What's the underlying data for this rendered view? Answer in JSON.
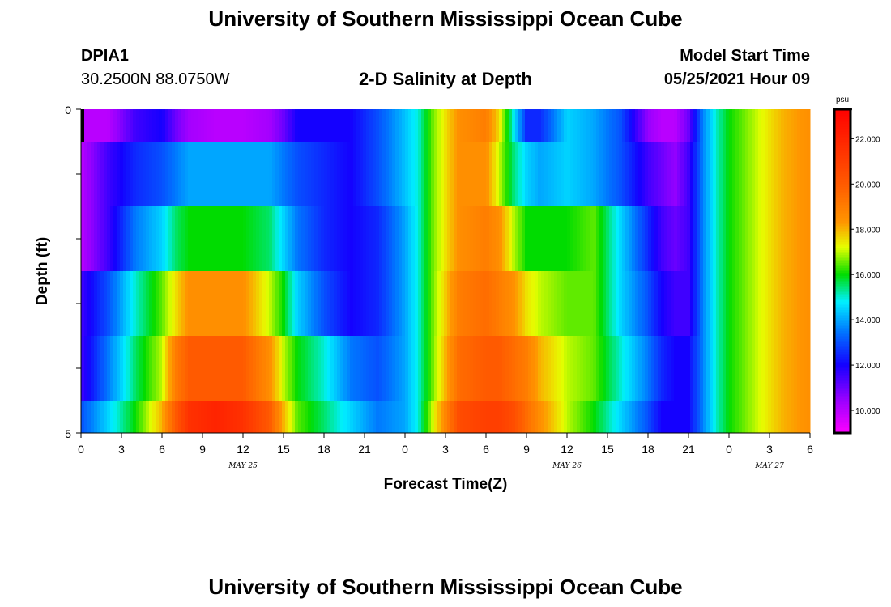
{
  "header": {
    "title_top": "University of Southern Mississippi Ocean Cube",
    "title_bottom": "University of Southern Mississippi Ocean Cube",
    "station_id": "DPIA1",
    "station_coords": "30.2500N  88.0750W",
    "model_start_label": "Model Start Time",
    "model_start_value": "05/25/2021 Hour 09"
  },
  "chart_data": {
    "type": "heatmap",
    "title": "2-D Salinity at Depth",
    "xlabel": "Forecast Time(Z)",
    "ylabel": "Depth (ft)",
    "y_ticks": [
      "0",
      "5"
    ],
    "y_range": [
      0,
      5
    ],
    "x_tick_labels": [
      "0",
      "3",
      "6",
      "9",
      "12",
      "15",
      "18",
      "21",
      "0",
      "3",
      "6",
      "9",
      "12",
      "15",
      "18",
      "21",
      "0",
      "3",
      "6"
    ],
    "date_labels": [
      {
        "text": "MAY 25",
        "at_tick": 4
      },
      {
        "text": "MAY 26",
        "at_tick": 12
      },
      {
        "text": "MAY 27",
        "at_tick": 17
      }
    ],
    "colorbar": {
      "unit": "psu",
      "ticks": [
        "22.000",
        "20.000",
        "18.000",
        "16.000",
        "14.000",
        "12.000",
        "10.000"
      ],
      "tick_values": [
        22,
        20,
        18,
        16,
        14,
        12,
        10
      ],
      "range": [
        9,
        23.3
      ]
    },
    "time_hours": [
      0,
      2,
      4,
      6,
      7,
      8,
      10,
      12,
      14,
      15,
      16,
      18,
      20,
      22,
      24,
      25,
      26,
      28,
      30,
      31,
      32,
      33,
      34,
      36,
      38,
      40,
      42,
      43,
      44,
      45,
      46,
      47,
      48,
      49,
      50,
      51,
      52,
      54
    ],
    "depth_layers": [
      "layer-1",
      "layer-2",
      "layer-3",
      "layer-4",
      "layer-5",
      "layer-6"
    ],
    "salinity_psu": [
      [
        10.0,
        10.0,
        11.5,
        12.0,
        11.0,
        10.3,
        10.0,
        10.0,
        10.3,
        11.0,
        12.0,
        12.0,
        12.0,
        13.0,
        14.3,
        15.0,
        16.5,
        18.5,
        19.0,
        17.5,
        15.0,
        12.5,
        12.5,
        14.5,
        14.0,
        13.0,
        10.5,
        10.0,
        10.0,
        11.0,
        13.5,
        15.0,
        16.0,
        16.5,
        17.0,
        17.5,
        18.0,
        18.5
      ],
      [
        10.0,
        11.5,
        12.5,
        13.0,
        13.5,
        14.0,
        14.0,
        14.0,
        14.0,
        13.5,
        13.0,
        12.5,
        12.0,
        13.0,
        14.3,
        15.0,
        16.5,
        18.5,
        18.5,
        17.0,
        15.5,
        14.5,
        14.0,
        14.5,
        14.0,
        13.0,
        11.5,
        11.0,
        10.5,
        11.5,
        13.5,
        15.0,
        16.0,
        16.5,
        17.0,
        17.5,
        18.0,
        18.5
      ],
      [
        10.0,
        11.5,
        13.5,
        14.5,
        15.5,
        16.0,
        16.0,
        16.0,
        15.5,
        14.5,
        13.5,
        12.5,
        12.0,
        12.5,
        14.0,
        15.0,
        16.5,
        18.5,
        19.0,
        18.5,
        17.0,
        16.0,
        16.0,
        16.0,
        16.5,
        14.5,
        12.5,
        11.5,
        11.0,
        11.5,
        13.5,
        15.0,
        16.0,
        16.5,
        17.0,
        17.5,
        18.0,
        18.5
      ],
      [
        11.5,
        13.0,
        15.0,
        16.5,
        17.5,
        18.5,
        18.5,
        18.5,
        17.0,
        16.0,
        14.5,
        13.0,
        12.0,
        12.5,
        14.0,
        15.0,
        16.5,
        19.0,
        19.5,
        19.0,
        18.5,
        17.5,
        17.0,
        16.5,
        16.5,
        14.5,
        13.0,
        12.0,
        11.5,
        11.5,
        13.5,
        15.0,
        16.0,
        16.5,
        17.0,
        17.5,
        18.0,
        18.5
      ],
      [
        11.5,
        13.5,
        15.5,
        17.0,
        19.0,
        20.0,
        20.0,
        20.0,
        18.5,
        17.0,
        16.0,
        15.0,
        13.5,
        13.0,
        14.0,
        15.0,
        16.5,
        19.5,
        20.0,
        20.0,
        19.5,
        19.0,
        18.0,
        17.0,
        16.5,
        15.0,
        13.5,
        12.5,
        12.0,
        12.0,
        13.5,
        15.0,
        16.0,
        16.5,
        17.0,
        17.5,
        18.0,
        18.5
      ],
      [
        13.0,
        14.5,
        16.0,
        18.0,
        20.0,
        21.5,
        22.0,
        21.5,
        20.0,
        18.0,
        16.5,
        15.5,
        14.5,
        13.5,
        14.0,
        15.0,
        17.0,
        20.5,
        21.0,
        21.0,
        20.5,
        19.5,
        18.5,
        17.0,
        16.0,
        14.5,
        13.0,
        12.0,
        12.0,
        12.0,
        13.5,
        15.0,
        16.0,
        16.5,
        17.0,
        17.5,
        18.0,
        18.5
      ]
    ]
  }
}
